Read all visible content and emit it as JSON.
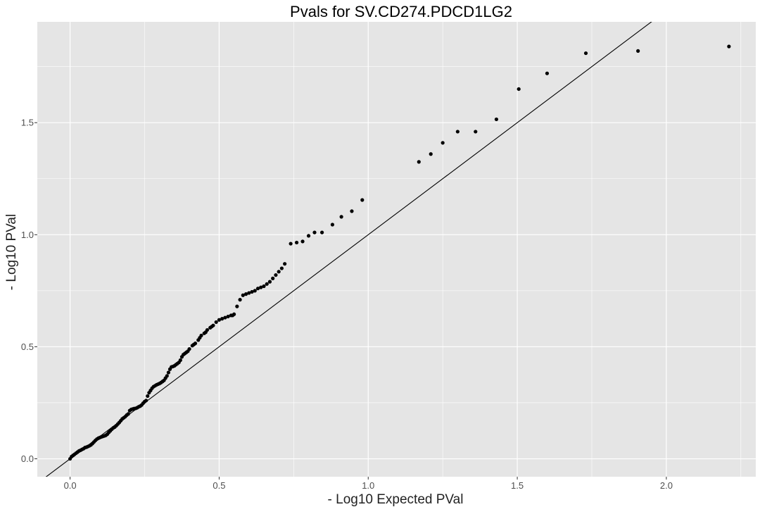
{
  "chart_data": {
    "type": "scatter",
    "title": "Pvals for SV.CD274.PDCD1LG2",
    "xlabel": "- Log10 Expected PVal",
    "ylabel": "- Log10 PVal",
    "xlim": [
      -0.11,
      2.3
    ],
    "ylim": [
      -0.08,
      1.95
    ],
    "x_ticks": [
      0.0,
      0.5,
      1.0,
      1.5,
      2.0
    ],
    "x_tick_labels": [
      "0.0",
      "0.5",
      "1.0",
      "1.5",
      "2.0"
    ],
    "y_ticks": [
      0.0,
      0.5,
      1.0,
      1.5
    ],
    "y_tick_labels": [
      "0.0",
      "0.5",
      "1.0",
      "1.5"
    ],
    "grid": true,
    "reference_line": {
      "slope": 1,
      "intercept": 0,
      "color": "#000000"
    },
    "colors": {
      "panel": "#E5E5E5",
      "grid": "#FFFFFF",
      "points": "#000000"
    },
    "points": [
      [
        0.0,
        0.0
      ],
      [
        0.005,
        0.01
      ],
      [
        0.01,
        0.015
      ],
      [
        0.015,
        0.02
      ],
      [
        0.02,
        0.025
      ],
      [
        0.025,
        0.03
      ],
      [
        0.03,
        0.035
      ],
      [
        0.035,
        0.038
      ],
      [
        0.04,
        0.042
      ],
      [
        0.045,
        0.045
      ],
      [
        0.05,
        0.05
      ],
      [
        0.055,
        0.052
      ],
      [
        0.06,
        0.055
      ],
      [
        0.065,
        0.058
      ],
      [
        0.07,
        0.062
      ],
      [
        0.075,
        0.068
      ],
      [
        0.08,
        0.075
      ],
      [
        0.085,
        0.082
      ],
      [
        0.09,
        0.088
      ],
      [
        0.095,
        0.092
      ],
      [
        0.1,
        0.095
      ],
      [
        0.105,
        0.098
      ],
      [
        0.11,
        0.1
      ],
      [
        0.115,
        0.102
      ],
      [
        0.12,
        0.105
      ],
      [
        0.125,
        0.11
      ],
      [
        0.13,
        0.118
      ],
      [
        0.135,
        0.125
      ],
      [
        0.14,
        0.132
      ],
      [
        0.145,
        0.138
      ],
      [
        0.15,
        0.142
      ],
      [
        0.155,
        0.148
      ],
      [
        0.16,
        0.155
      ],
      [
        0.165,
        0.162
      ],
      [
        0.17,
        0.17
      ],
      [
        0.175,
        0.178
      ],
      [
        0.18,
        0.183
      ],
      [
        0.185,
        0.188
      ],
      [
        0.19,
        0.195
      ],
      [
        0.195,
        0.2
      ],
      [
        0.2,
        0.215
      ],
      [
        0.205,
        0.22
      ],
      [
        0.21,
        0.222
      ],
      [
        0.215,
        0.224
      ],
      [
        0.22,
        0.225
      ],
      [
        0.225,
        0.228
      ],
      [
        0.23,
        0.232
      ],
      [
        0.235,
        0.235
      ],
      [
        0.24,
        0.24
      ],
      [
        0.245,
        0.248
      ],
      [
        0.25,
        0.255
      ],
      [
        0.255,
        0.26
      ],
      [
        0.26,
        0.28
      ],
      [
        0.265,
        0.295
      ],
      [
        0.27,
        0.305
      ],
      [
        0.275,
        0.315
      ],
      [
        0.28,
        0.322
      ],
      [
        0.285,
        0.326
      ],
      [
        0.29,
        0.33
      ],
      [
        0.295,
        0.333
      ],
      [
        0.3,
        0.336
      ],
      [
        0.305,
        0.34
      ],
      [
        0.31,
        0.345
      ],
      [
        0.315,
        0.35
      ],
      [
        0.32,
        0.36
      ],
      [
        0.325,
        0.37
      ],
      [
        0.33,
        0.385
      ],
      [
        0.335,
        0.4
      ],
      [
        0.34,
        0.41
      ],
      [
        0.345,
        0.412
      ],
      [
        0.35,
        0.415
      ],
      [
        0.355,
        0.42
      ],
      [
        0.36,
        0.425
      ],
      [
        0.365,
        0.43
      ],
      [
        0.37,
        0.44
      ],
      [
        0.375,
        0.455
      ],
      [
        0.38,
        0.465
      ],
      [
        0.385,
        0.47
      ],
      [
        0.39,
        0.475
      ],
      [
        0.395,
        0.48
      ],
      [
        0.4,
        0.49
      ],
      [
        0.41,
        0.505
      ],
      [
        0.415,
        0.51
      ],
      [
        0.42,
        0.515
      ],
      [
        0.43,
        0.53
      ],
      [
        0.435,
        0.54
      ],
      [
        0.44,
        0.55
      ],
      [
        0.45,
        0.56
      ],
      [
        0.455,
        0.565
      ],
      [
        0.46,
        0.575
      ],
      [
        0.47,
        0.585
      ],
      [
        0.475,
        0.59
      ],
      [
        0.48,
        0.595
      ],
      [
        0.49,
        0.61
      ],
      [
        0.5,
        0.62
      ],
      [
        0.51,
        0.625
      ],
      [
        0.52,
        0.63
      ],
      [
        0.53,
        0.635
      ],
      [
        0.54,
        0.64
      ],
      [
        0.545,
        0.64
      ],
      [
        0.55,
        0.645
      ],
      [
        0.56,
        0.68
      ],
      [
        0.57,
        0.71
      ],
      [
        0.58,
        0.73
      ],
      [
        0.59,
        0.735
      ],
      [
        0.6,
        0.74
      ],
      [
        0.61,
        0.745
      ],
      [
        0.62,
        0.75
      ],
      [
        0.63,
        0.76
      ],
      [
        0.64,
        0.765
      ],
      [
        0.65,
        0.77
      ],
      [
        0.66,
        0.78
      ],
      [
        0.67,
        0.79
      ],
      [
        0.68,
        0.805
      ],
      [
        0.69,
        0.82
      ],
      [
        0.7,
        0.835
      ],
      [
        0.71,
        0.85
      ],
      [
        0.72,
        0.87
      ],
      [
        0.74,
        0.96
      ],
      [
        0.76,
        0.965
      ],
      [
        0.78,
        0.97
      ],
      [
        0.8,
        0.995
      ],
      [
        0.82,
        1.01
      ],
      [
        0.845,
        1.01
      ],
      [
        0.88,
        1.045
      ],
      [
        0.91,
        1.08
      ],
      [
        0.945,
        1.105
      ],
      [
        0.98,
        1.155
      ],
      [
        1.17,
        1.325
      ],
      [
        1.21,
        1.36
      ],
      [
        1.25,
        1.41
      ],
      [
        1.3,
        1.46
      ],
      [
        1.36,
        1.46
      ],
      [
        1.43,
        1.515
      ],
      [
        1.505,
        1.65
      ],
      [
        1.6,
        1.72
      ],
      [
        1.73,
        1.81
      ],
      [
        1.905,
        1.82
      ],
      [
        2.21,
        1.84
      ]
    ]
  }
}
